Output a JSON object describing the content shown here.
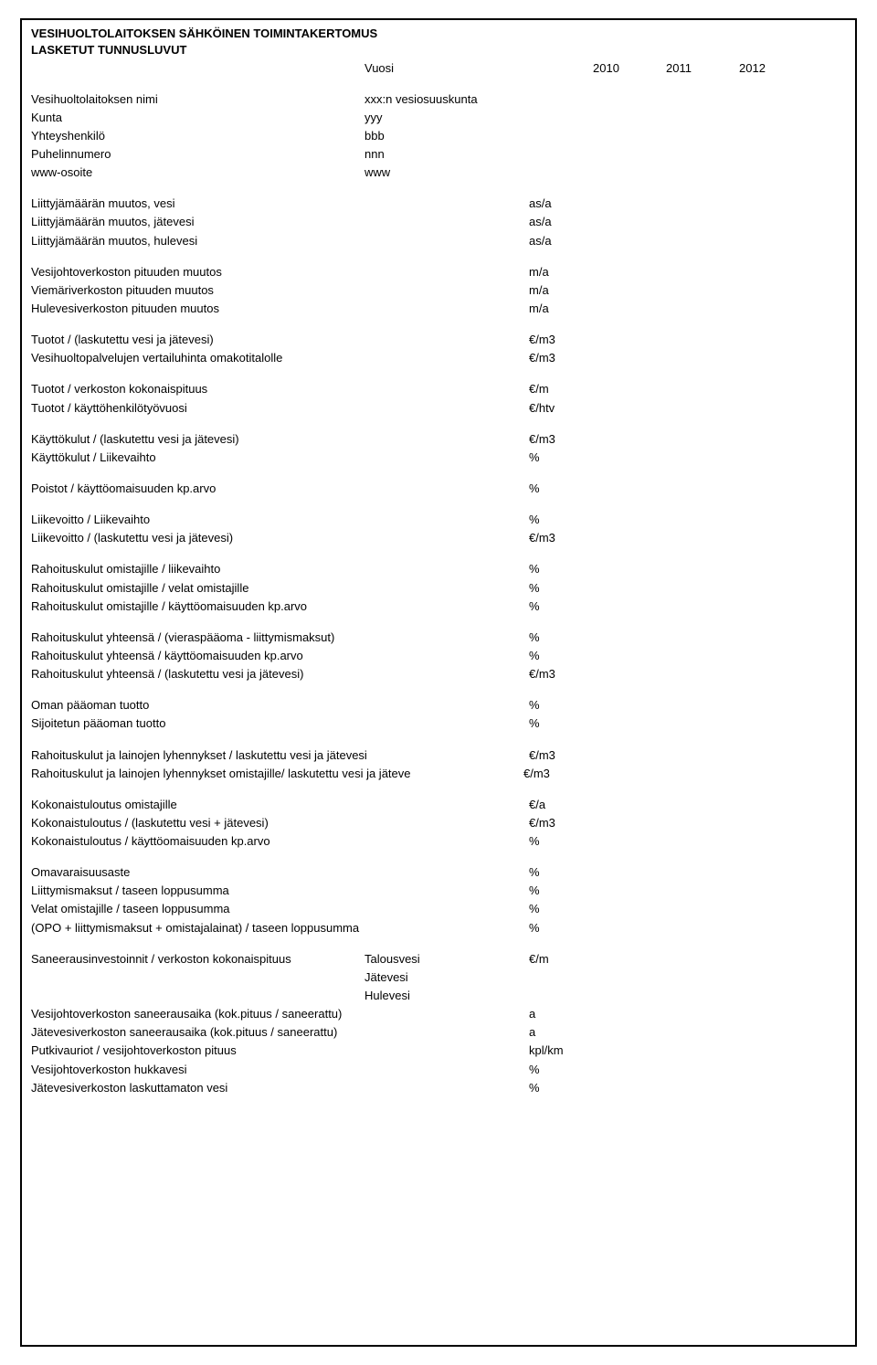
{
  "header": {
    "title_line1": "VESIHUOLTOLAITOKSEN SÄHKÖINEN TOIMINTAKERTOMUS",
    "title_line2": "LASKETUT TUNNUSLUVUT",
    "year_label": "Vuosi",
    "years": [
      "2010",
      "2011",
      "2012"
    ]
  },
  "info": {
    "rows": [
      {
        "label": "Vesihuoltolaitoksen nimi",
        "value": "xxx:n vesiosuuskunta"
      },
      {
        "label": "Kunta",
        "value": "yyy"
      },
      {
        "label": "Yhteyshenkilö",
        "value": "bbb"
      },
      {
        "label": "Puhelinnumero",
        "value": "nnn"
      },
      {
        "label": "www-osoite",
        "value": "www"
      }
    ]
  },
  "metrics": [
    {
      "type": "gap"
    },
    {
      "label": "Liittyjämäärän muutos, vesi",
      "unit": "as/a"
    },
    {
      "label": "Liittyjämäärän muutos, jätevesi",
      "unit": "as/a"
    },
    {
      "label": "Liittyjämäärän muutos, hulevesi",
      "unit": "as/a"
    },
    {
      "type": "gap"
    },
    {
      "label": "Vesijohtoverkoston pituuden muutos",
      "unit": "m/a"
    },
    {
      "label": "Viemäriverkoston pituuden muutos",
      "unit": "m/a"
    },
    {
      "label": "Hulevesiverkoston pituuden muutos",
      "unit": "m/a"
    },
    {
      "type": "gap"
    },
    {
      "label": "Tuotot / (laskutettu vesi ja jätevesi)",
      "unit": "€/m3"
    },
    {
      "label": "Vesihuoltopalvelujen vertailuhinta omakotitalolle",
      "unit": "€/m3"
    },
    {
      "type": "gap"
    },
    {
      "label": "Tuotot / verkoston kokonaispituus",
      "unit": "€/m"
    },
    {
      "label": "Tuotot / käyttöhenkilötyövuosi",
      "unit": "€/htv"
    },
    {
      "type": "gap"
    },
    {
      "label": "Käyttökulut / (laskutettu vesi ja jätevesi)",
      "unit": "€/m3"
    },
    {
      "label": "Käyttökulut / Liikevaihto",
      "unit": "%"
    },
    {
      "type": "gap"
    },
    {
      "label": "Poistot / käyttöomaisuuden kp.arvo",
      "unit": "%"
    },
    {
      "type": "gap"
    },
    {
      "label": "Liikevoitto / Liikevaihto",
      "unit": "%"
    },
    {
      "label": "Liikevoitto / (laskutettu vesi ja jätevesi)",
      "unit": "€/m3"
    },
    {
      "type": "gap"
    },
    {
      "label": "Rahoituskulut omistajille / liikevaihto",
      "unit": "%"
    },
    {
      "label": "Rahoituskulut omistajille / velat omistajille",
      "unit": "%"
    },
    {
      "label": "Rahoituskulut omistajille / käyttöomaisuuden kp.arvo",
      "unit": "%"
    },
    {
      "type": "gap"
    },
    {
      "label": "Rahoituskulut yhteensä / (vieraspääoma - liittymismaksut)",
      "unit": "%"
    },
    {
      "label": "Rahoituskulut yhteensä / käyttöomaisuuden kp.arvo",
      "unit": "%"
    },
    {
      "label": "Rahoituskulut yhteensä / (laskutettu vesi ja jätevesi)",
      "unit": "€/m3"
    },
    {
      "type": "gap"
    },
    {
      "label": "Oman pääoman tuotto",
      "unit": "%"
    },
    {
      "label": "Sijoitetun pääoman tuotto",
      "unit": "%"
    },
    {
      "type": "gap"
    },
    {
      "label": "Rahoituskulut ja lainojen lyhennykset / laskutettu vesi ja jätevesi",
      "unit": "€/m3",
      "wide": true
    },
    {
      "label": "Rahoituskulut ja lainojen lyhennykset omistajille/ laskutettu vesi ja jäteve",
      "unit": "€/m3",
      "wide": true,
      "tight": true
    },
    {
      "type": "gap"
    },
    {
      "label": "Kokonaistuloutus omistajille",
      "unit": "€/a"
    },
    {
      "label": "Kokonaistuloutus / (laskutettu vesi + jätevesi)",
      "unit": "€/m3"
    },
    {
      "label": "Kokonaistuloutus / käyttöomaisuuden kp.arvo",
      "unit": "%"
    },
    {
      "type": "gap"
    },
    {
      "label": "Omavaraisuusaste",
      "unit": "%"
    },
    {
      "label": "Liittymismaksut / taseen loppusumma",
      "unit": "%"
    },
    {
      "label": "Velat omistajille / taseen loppusumma",
      "unit": "%"
    },
    {
      "label": "(OPO + liittymismaksut + omistajalainat) / taseen loppusumma",
      "unit": "%"
    },
    {
      "type": "gap"
    }
  ],
  "saneeraus": {
    "main_label": "Saneerausinvestoinnit / verkoston kokonaispituus",
    "sub1": "Talousvesi",
    "sub2": "Jätevesi",
    "sub3": "Hulevesi",
    "main_unit": "€/m"
  },
  "tail": [
    {
      "label": "Vesijohtoverkoston saneerausaika (kok.pituus / saneerattu)",
      "unit": "a"
    },
    {
      "label": "Jätevesiverkoston saneerausaika (kok.pituus / saneerattu)",
      "unit": "a"
    },
    {
      "label": "Putkivauriot / vesijohtoverkoston pituus",
      "unit": "kpl/km"
    },
    {
      "label": "Vesijohtoverkoston hukkavesi",
      "unit": "%"
    },
    {
      "label": "Jätevesiverkoston laskuttamaton vesi",
      "unit": "%"
    }
  ]
}
